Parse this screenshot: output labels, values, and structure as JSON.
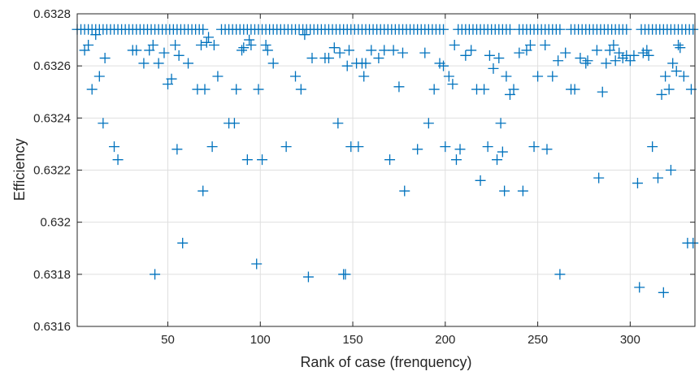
{
  "chart_data": {
    "type": "scatter",
    "title": "",
    "xlabel": "Rank of case (frenquency)",
    "ylabel": "Efficiency",
    "xlim": [
      1,
      335
    ],
    "ylim": [
      0.6316,
      0.6328
    ],
    "x_ticks": [
      50,
      100,
      150,
      200,
      250,
      300
    ],
    "x_tick_labels": [
      "50",
      "100",
      "150",
      "200",
      "250",
      "300"
    ],
    "y_ticks": [
      0.6316,
      0.6318,
      0.632,
      0.6322,
      0.6324,
      0.6326,
      0.6328
    ],
    "y_tick_labels": [
      "0.6316",
      "0.6318",
      "0.632",
      "0.6322",
      "0.6324",
      "0.6326",
      "0.6328"
    ],
    "grid": true,
    "marker": "+",
    "color": "#0072BD",
    "series": [
      {
        "points": [
          [
            1,
            0.63274
          ],
          [
            3,
            0.63274
          ],
          [
            5,
            0.63274
          ],
          [
            7,
            0.63274
          ],
          [
            9,
            0.63274
          ],
          [
            11,
            0.63274
          ],
          [
            13,
            0.63274
          ],
          [
            15,
            0.63274
          ],
          [
            17,
            0.63274
          ],
          [
            19,
            0.63274
          ],
          [
            21,
            0.63274
          ],
          [
            23,
            0.63274
          ],
          [
            25,
            0.63274
          ],
          [
            27,
            0.63274
          ],
          [
            29,
            0.63274
          ],
          [
            31,
            0.63274
          ],
          [
            33,
            0.63274
          ],
          [
            35,
            0.63274
          ],
          [
            37,
            0.63274
          ],
          [
            39,
            0.63274
          ],
          [
            41,
            0.63274
          ],
          [
            43,
            0.63274
          ],
          [
            45,
            0.63274
          ],
          [
            47,
            0.63274
          ],
          [
            49,
            0.63274
          ],
          [
            51,
            0.63274
          ],
          [
            53,
            0.63274
          ],
          [
            55,
            0.63274
          ],
          [
            57,
            0.63274
          ],
          [
            59,
            0.63274
          ],
          [
            61,
            0.63274
          ],
          [
            63,
            0.63274
          ],
          [
            65,
            0.63274
          ],
          [
            67,
            0.63274
          ],
          [
            69,
            0.63274
          ],
          [
            79,
            0.63274
          ],
          [
            81,
            0.63274
          ],
          [
            83,
            0.63274
          ],
          [
            85,
            0.63274
          ],
          [
            87,
            0.63274
          ],
          [
            89,
            0.63274
          ],
          [
            91,
            0.63274
          ],
          [
            93,
            0.63274
          ],
          [
            95,
            0.63274
          ],
          [
            97,
            0.63274
          ],
          [
            99,
            0.63274
          ],
          [
            101,
            0.63274
          ],
          [
            103,
            0.63274
          ],
          [
            105,
            0.63274
          ],
          [
            107,
            0.63274
          ],
          [
            109,
            0.63274
          ],
          [
            111,
            0.63274
          ],
          [
            113,
            0.63274
          ],
          [
            115,
            0.63274
          ],
          [
            117,
            0.63274
          ],
          [
            119,
            0.63274
          ],
          [
            121,
            0.63274
          ],
          [
            123,
            0.63274
          ],
          [
            125,
            0.63274
          ],
          [
            127,
            0.63274
          ],
          [
            129,
            0.63274
          ],
          [
            131,
            0.63274
          ],
          [
            133,
            0.63274
          ],
          [
            135,
            0.63274
          ],
          [
            137,
            0.63274
          ],
          [
            139,
            0.63274
          ],
          [
            141,
            0.63274
          ],
          [
            143,
            0.63274
          ],
          [
            145,
            0.63274
          ],
          [
            147,
            0.63274
          ],
          [
            149,
            0.63274
          ],
          [
            151,
            0.63274
          ],
          [
            153,
            0.63274
          ],
          [
            155,
            0.63274
          ],
          [
            157,
            0.63274
          ],
          [
            159,
            0.63274
          ],
          [
            161,
            0.63274
          ],
          [
            163,
            0.63274
          ],
          [
            165,
            0.63274
          ],
          [
            167,
            0.63274
          ],
          [
            169,
            0.63274
          ],
          [
            171,
            0.63274
          ],
          [
            173,
            0.63274
          ],
          [
            175,
            0.63274
          ],
          [
            177,
            0.63274
          ],
          [
            179,
            0.63274
          ],
          [
            181,
            0.63274
          ],
          [
            183,
            0.63274
          ],
          [
            185,
            0.63274
          ],
          [
            187,
            0.63274
          ],
          [
            189,
            0.63274
          ],
          [
            191,
            0.63274
          ],
          [
            193,
            0.63274
          ],
          [
            195,
            0.63274
          ],
          [
            197,
            0.63274
          ],
          [
            199,
            0.63274
          ],
          [
            207,
            0.63274
          ],
          [
            209,
            0.63274
          ],
          [
            211,
            0.63274
          ],
          [
            213,
            0.63274
          ],
          [
            215,
            0.63274
          ],
          [
            217,
            0.63274
          ],
          [
            219,
            0.63274
          ],
          [
            221,
            0.63274
          ],
          [
            223,
            0.63274
          ],
          [
            225,
            0.63274
          ],
          [
            227,
            0.63274
          ],
          [
            229,
            0.63274
          ],
          [
            231,
            0.63274
          ],
          [
            233,
            0.63274
          ],
          [
            235,
            0.63274
          ],
          [
            240,
            0.63274
          ],
          [
            242,
            0.63274
          ],
          [
            244,
            0.63274
          ],
          [
            246,
            0.63274
          ],
          [
            248,
            0.63274
          ],
          [
            250,
            0.63274
          ],
          [
            252,
            0.63274
          ],
          [
            254,
            0.63274
          ],
          [
            256,
            0.63274
          ],
          [
            258,
            0.63274
          ],
          [
            260,
            0.63274
          ],
          [
            262,
            0.63274
          ],
          [
            268,
            0.63274
          ],
          [
            270,
            0.63274
          ],
          [
            272,
            0.63274
          ],
          [
            274,
            0.63274
          ],
          [
            276,
            0.63274
          ],
          [
            278,
            0.63274
          ],
          [
            280,
            0.63274
          ],
          [
            282,
            0.63274
          ],
          [
            284,
            0.63274
          ],
          [
            286,
            0.63274
          ],
          [
            288,
            0.63274
          ],
          [
            290,
            0.63274
          ],
          [
            292,
            0.63274
          ],
          [
            294,
            0.63274
          ],
          [
            296,
            0.63274
          ],
          [
            298,
            0.63274
          ],
          [
            306,
            0.63274
          ],
          [
            308,
            0.63274
          ],
          [
            310,
            0.63274
          ],
          [
            312,
            0.63274
          ],
          [
            314,
            0.63274
          ],
          [
            316,
            0.63274
          ],
          [
            318,
            0.63274
          ],
          [
            320,
            0.63274
          ],
          [
            322,
            0.63274
          ],
          [
            324,
            0.63274
          ],
          [
            326,
            0.63274
          ],
          [
            328,
            0.63274
          ],
          [
            330,
            0.63274
          ],
          [
            332,
            0.63274
          ],
          [
            334,
            0.63274
          ],
          [
            5,
            0.63266
          ],
          [
            7,
            0.63268
          ],
          [
            9,
            0.63251
          ],
          [
            11,
            0.63272
          ],
          [
            13,
            0.63256
          ],
          [
            15,
            0.63238
          ],
          [
            16,
            0.63263
          ],
          [
            21,
            0.63229
          ],
          [
            23,
            0.63224
          ],
          [
            31,
            0.63266
          ],
          [
            33,
            0.63266
          ],
          [
            37,
            0.63261
          ],
          [
            40,
            0.63266
          ],
          [
            42,
            0.63268
          ],
          [
            43,
            0.6318
          ],
          [
            45,
            0.63261
          ],
          [
            48,
            0.63265
          ],
          [
            50,
            0.63253
          ],
          [
            52,
            0.63255
          ],
          [
            54,
            0.63268
          ],
          [
            55,
            0.63228
          ],
          [
            56,
            0.63264
          ],
          [
            58,
            0.63192
          ],
          [
            61,
            0.63261
          ],
          [
            66,
            0.63251
          ],
          [
            68,
            0.63268
          ],
          [
            69,
            0.63212
          ],
          [
            70,
            0.63251
          ],
          [
            71,
            0.63269
          ],
          [
            72,
            0.63271
          ],
          [
            74,
            0.63229
          ],
          [
            75,
            0.63268
          ],
          [
            77,
            0.63256
          ],
          [
            83,
            0.63238
          ],
          [
            86,
            0.63238
          ],
          [
            87,
            0.63251
          ],
          [
            90,
            0.63266
          ],
          [
            91,
            0.63267
          ],
          [
            93,
            0.63224
          ],
          [
            94,
            0.6327
          ],
          [
            95,
            0.63268
          ],
          [
            98,
            0.63184
          ],
          [
            99,
            0.63251
          ],
          [
            101,
            0.63224
          ],
          [
            103,
            0.63268
          ],
          [
            104,
            0.63266
          ],
          [
            107,
            0.63261
          ],
          [
            114,
            0.63229
          ],
          [
            119,
            0.63256
          ],
          [
            122,
            0.63251
          ],
          [
            124,
            0.63272
          ],
          [
            126,
            0.63179
          ],
          [
            128,
            0.63263
          ],
          [
            135,
            0.63263
          ],
          [
            137,
            0.63263
          ],
          [
            140,
            0.63267
          ],
          [
            142,
            0.63238
          ],
          [
            143,
            0.63265
          ],
          [
            145,
            0.6318
          ],
          [
            146,
            0.6318
          ],
          [
            147,
            0.6326
          ],
          [
            148,
            0.63266
          ],
          [
            149,
            0.63229
          ],
          [
            152,
            0.63261
          ],
          [
            153,
            0.63229
          ],
          [
            155,
            0.63261
          ],
          [
            156,
            0.63256
          ],
          [
            157,
            0.63261
          ],
          [
            160,
            0.63266
          ],
          [
            164,
            0.63263
          ],
          [
            167,
            0.63266
          ],
          [
            170,
            0.63224
          ],
          [
            172,
            0.63266
          ],
          [
            175,
            0.63252
          ],
          [
            177,
            0.63265
          ],
          [
            178,
            0.63212
          ],
          [
            185,
            0.63228
          ],
          [
            189,
            0.63265
          ],
          [
            191,
            0.63238
          ],
          [
            194,
            0.63251
          ],
          [
            197,
            0.63261
          ],
          [
            199,
            0.6326
          ],
          [
            200,
            0.63229
          ],
          [
            202,
            0.63256
          ],
          [
            204,
            0.63253
          ],
          [
            205,
            0.63268
          ],
          [
            206,
            0.63224
          ],
          [
            208,
            0.63228
          ],
          [
            211,
            0.63264
          ],
          [
            214,
            0.63266
          ],
          [
            217,
            0.63251
          ],
          [
            219,
            0.63216
          ],
          [
            221,
            0.63251
          ],
          [
            223,
            0.63229
          ],
          [
            224,
            0.63264
          ],
          [
            226,
            0.63259
          ],
          [
            228,
            0.63224
          ],
          [
            229,
            0.63263
          ],
          [
            230,
            0.63238
          ],
          [
            231,
            0.63227
          ],
          [
            232,
            0.63212
          ],
          [
            233,
            0.63256
          ],
          [
            235,
            0.63249
          ],
          [
            237,
            0.63251
          ],
          [
            240,
            0.63265
          ],
          [
            242,
            0.63212
          ],
          [
            244,
            0.63266
          ],
          [
            246,
            0.63268
          ],
          [
            248,
            0.63229
          ],
          [
            250,
            0.63256
          ],
          [
            254,
            0.63268
          ],
          [
            255,
            0.63228
          ],
          [
            258,
            0.63256
          ],
          [
            261,
            0.63262
          ],
          [
            262,
            0.6318
          ],
          [
            265,
            0.63265
          ],
          [
            268,
            0.63251
          ],
          [
            270,
            0.63251
          ],
          [
            273,
            0.63263
          ],
          [
            276,
            0.63261
          ],
          [
            277,
            0.63262
          ],
          [
            282,
            0.63266
          ],
          [
            283,
            0.63217
          ],
          [
            285,
            0.6325
          ],
          [
            287,
            0.63261
          ],
          [
            289,
            0.63266
          ],
          [
            291,
            0.63268
          ],
          [
            292,
            0.63262
          ],
          [
            294,
            0.63265
          ],
          [
            296,
            0.63263
          ],
          [
            298,
            0.63264
          ],
          [
            300,
            0.63262
          ],
          [
            302,
            0.63264
          ],
          [
            304,
            0.63215
          ],
          [
            305,
            0.63175
          ],
          [
            307,
            0.63265
          ],
          [
            309,
            0.63266
          ],
          [
            310,
            0.63264
          ],
          [
            312,
            0.63229
          ],
          [
            315,
            0.63217
          ],
          [
            317,
            0.63249
          ],
          [
            318,
            0.63173
          ],
          [
            319,
            0.63256
          ],
          [
            321,
            0.63251
          ],
          [
            322,
            0.6322
          ],
          [
            323,
            0.63261
          ],
          [
            325,
            0.63258
          ],
          [
            326,
            0.63268
          ],
          [
            327,
            0.63267
          ],
          [
            329,
            0.63256
          ],
          [
            331,
            0.63192
          ],
          [
            333,
            0.63251
          ],
          [
            334,
            0.63192
          ]
        ]
      }
    ]
  }
}
